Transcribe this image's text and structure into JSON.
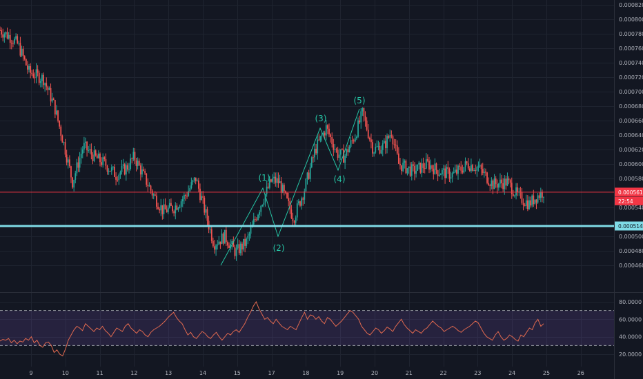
{
  "chart_data": [
    {
      "type": "candlestick",
      "xlabel": "",
      "ylabel": "",
      "x_ticks": [
        "9",
        "10",
        "11",
        "12",
        "13",
        "14",
        "15",
        "17",
        "18",
        "19",
        "20",
        "21",
        "22",
        "23",
        "24",
        "25",
        "26"
      ],
      "y_ticks": [
        "0.0008200",
        "0.0008000",
        "0.0007800",
        "0.0007600",
        "0.0007400",
        "0.0007200",
        "0.0007000",
        "0.0006800",
        "0.0006600",
        "0.0006400",
        "0.0006200",
        "0.0006000",
        "0.0005800",
        "0.0005400",
        "0.0005000",
        "0.0004800",
        "0.0004600"
      ],
      "ylim": [
        0.000442,
        0.000824
      ],
      "grid": true,
      "close_path": [
        {
          "x": 0,
          "y": 0.000785
        },
        {
          "x": 0.3,
          "y": 0.000775
        },
        {
          "x": 0.5,
          "y": 0.000765
        },
        {
          "x": 0.8,
          "y": 0.000727
        },
        {
          "x": 1.2,
          "y": 0.000718
        },
        {
          "x": 1.5,
          "y": 0.00068
        },
        {
          "x": 1.8,
          "y": 0.00062
        },
        {
          "x": 2.0,
          "y": 0.000575
        },
        {
          "x": 2.3,
          "y": 0.000625
        },
        {
          "x": 2.6,
          "y": 0.00061
        },
        {
          "x": 2.9,
          "y": 0.0006
        },
        {
          "x": 3.2,
          "y": 0.000585
        },
        {
          "x": 3.5,
          "y": 0.000595
        },
        {
          "x": 3.7,
          "y": 0.00061
        },
        {
          "x": 3.9,
          "y": 0.00059
        },
        {
          "x": 4.2,
          "y": 0.00056
        },
        {
          "x": 4.5,
          "y": 0.000535
        },
        {
          "x": 4.8,
          "y": 0.00054
        },
        {
          "x": 5.1,
          "y": 0.000555
        },
        {
          "x": 5.4,
          "y": 0.00058
        },
        {
          "x": 5.6,
          "y": 0.000545
        },
        {
          "x": 5.9,
          "y": 0.00049
        },
        {
          "x": 6.2,
          "y": 0.0005
        },
        {
          "x": 6.5,
          "y": 0.000478
        },
        {
          "x": 6.8,
          "y": 0.000492
        },
        {
          "x": 7.2,
          "y": 0.000545
        },
        {
          "x": 7.5,
          "y": 0.000578
        },
        {
          "x": 7.7,
          "y": 0.000575
        },
        {
          "x": 7.9,
          "y": 0.00055
        },
        {
          "x": 8.1,
          "y": 0.000525
        },
        {
          "x": 8.4,
          "y": 0.000565
        },
        {
          "x": 8.7,
          "y": 0.00062
        },
        {
          "x": 9.0,
          "y": 0.00065
        },
        {
          "x": 9.3,
          "y": 0.000615
        },
        {
          "x": 9.5,
          "y": 0.00061
        },
        {
          "x": 9.8,
          "y": 0.00064
        },
        {
          "x": 10.0,
          "y": 0.00067
        },
        {
          "x": 10.3,
          "y": 0.00062
        },
        {
          "x": 10.6,
          "y": 0.000625
        },
        {
          "x": 10.8,
          "y": 0.000645
        },
        {
          "x": 11.0,
          "y": 0.0006
        },
        {
          "x": 11.4,
          "y": 0.00059
        },
        {
          "x": 11.8,
          "y": 0.0006
        },
        {
          "x": 12.1,
          "y": 0.00059
        },
        {
          "x": 12.5,
          "y": 0.000585
        },
        {
          "x": 12.9,
          "y": 0.0006
        },
        {
          "x": 13.2,
          "y": 0.000595
        },
        {
          "x": 13.6,
          "y": 0.000572
        },
        {
          "x": 14.0,
          "y": 0.000575
        },
        {
          "x": 14.3,
          "y": 0.000555
        },
        {
          "x": 14.6,
          "y": 0.000545
        },
        {
          "x": 14.8,
          "y": 0.000555
        },
        {
          "x": 15.0,
          "y": 0.000562
        }
      ],
      "horizontal_lines": [
        {
          "value": 0.0005611,
          "label": "0.0005611",
          "color": "#f23645"
        },
        {
          "value": 0.0005143,
          "label": "0.0005143",
          "color": "#7fdbe6"
        }
      ],
      "countdown_label": "22:54",
      "wave_labels": [
        {
          "text": "(1)",
          "x": 7.7,
          "y": 0.000586
        },
        {
          "text": "(2)",
          "x": 8.1,
          "y": 0.000512
        },
        {
          "text": "(3)",
          "x": 9.0,
          "y": 0.000659
        },
        {
          "text": "(4)",
          "x": 9.5,
          "y": 0.000602
        },
        {
          "text": "(5)",
          "x": 10.0,
          "y": 0.000684
        }
      ],
      "colors": {
        "up": "#26a69a",
        "down": "#ef5350",
        "wave_line": "#26c6a6",
        "grid": "#1f2430"
      }
    },
    {
      "type": "line",
      "ylim": [
        14,
        83
      ],
      "y_ticks": [
        "80.0000",
        "60.0000",
        "40.0000",
        "20.0000"
      ],
      "band": [
        30,
        70
      ],
      "band_color": "#7e57c2",
      "line_color": "#e0694f",
      "series": [
        {
          "values": [
            35,
            37,
            36,
            38,
            33,
            36,
            32,
            35,
            34,
            38,
            36,
            40,
            33,
            36,
            30,
            28,
            33,
            34,
            30,
            22,
            25,
            20,
            18,
            26,
            36,
            42,
            48,
            52,
            50,
            47,
            55,
            52,
            49,
            46,
            50,
            48,
            52,
            47,
            44,
            40,
            45,
            50,
            48,
            46,
            52,
            55,
            50,
            47,
            44,
            48,
            46,
            42,
            40,
            45,
            48,
            50,
            52,
            55,
            58,
            62,
            65,
            68,
            62,
            58,
            55,
            48,
            42,
            45,
            40,
            38,
            42,
            46,
            44,
            40,
            38,
            42,
            45,
            40,
            36,
            40,
            44,
            42,
            46,
            48,
            45,
            50,
            55,
            62,
            68,
            75,
            80,
            72,
            66,
            60,
            62,
            58,
            55,
            60,
            56,
            52,
            50,
            48,
            52,
            50,
            48,
            55,
            62,
            68,
            60,
            65,
            64,
            60,
            63,
            58,
            55,
            62,
            60,
            56,
            52,
            55,
            58,
            62,
            66,
            70,
            68,
            64,
            60,
            52,
            48,
            44,
            42,
            46,
            50,
            48,
            44,
            47,
            51,
            49,
            46,
            52,
            56,
            60,
            54,
            50,
            47,
            44,
            48,
            46,
            44,
            48,
            50,
            54,
            58,
            55,
            52,
            50,
            46,
            48,
            50,
            52,
            50,
            47,
            45,
            48,
            50,
            52,
            55,
            58,
            56,
            50,
            44,
            40,
            38,
            36,
            42,
            46,
            40,
            36,
            38,
            42,
            40,
            37,
            35,
            42,
            40,
            45,
            50,
            48,
            56,
            60,
            52,
            55
          ]
        }
      ]
    }
  ]
}
